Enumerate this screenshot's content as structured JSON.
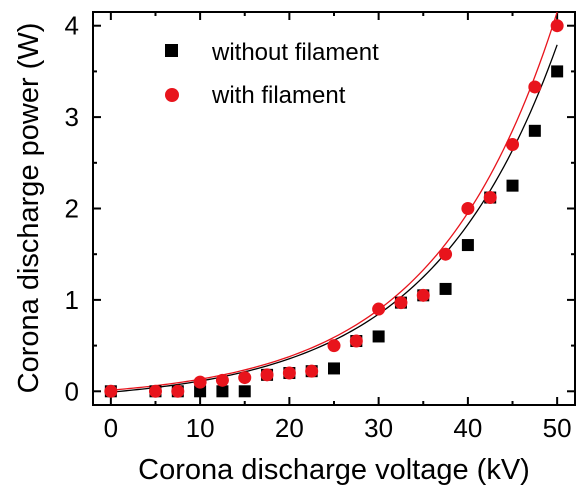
{
  "chart_data": {
    "type": "scatter",
    "title": "",
    "xlabel": "Corona discharge voltage (kV)",
    "ylabel": "Corona discharge power (W)",
    "xlim": [
      -2,
      52
    ],
    "ylim": [
      -0.15,
      4.15
    ],
    "xticks": [
      "0",
      "10",
      "20",
      "30",
      "40",
      "50"
    ],
    "yticks": [
      "0",
      "1",
      "2",
      "3",
      "4"
    ],
    "grid": false,
    "legend_position": "top-left",
    "series": [
      {
        "name": "without filament",
        "marker": "square",
        "color": "#000000",
        "x": [
          0,
          5,
          7.5,
          10,
          12.5,
          15,
          17.5,
          20,
          22.5,
          25,
          27.5,
          30,
          32.5,
          35,
          37.5,
          40,
          42.5,
          45,
          47.5,
          50
        ],
        "y": [
          0,
          0,
          0,
          0,
          0,
          0,
          0.18,
          0.2,
          0.22,
          0.25,
          0.55,
          0.6,
          0.97,
          1.05,
          1.12,
          1.6,
          2.12,
          2.25,
          2.85,
          3.5
        ],
        "fit": {
          "a": -0.13,
          "b": 0.1208,
          "k": 0.0696
        }
      },
      {
        "name": "with filament",
        "marker": "circle",
        "color": "#e8141c",
        "x": [
          0,
          5,
          7.5,
          10,
          12.5,
          15,
          17.5,
          20,
          22.5,
          25,
          27.5,
          30,
          32.5,
          35,
          37.5,
          40,
          42.5,
          45,
          47.5,
          50
        ],
        "y": [
          0,
          0,
          0,
          0.1,
          0.12,
          0.15,
          0.18,
          0.2,
          0.22,
          0.5,
          0.55,
          0.9,
          0.97,
          1.05,
          1.5,
          2.0,
          2.12,
          2.7,
          3.33,
          4.0
        ],
        "fit": {
          "a": -0.1,
          "b": 0.1121,
          "k": 0.0727
        }
      }
    ]
  }
}
